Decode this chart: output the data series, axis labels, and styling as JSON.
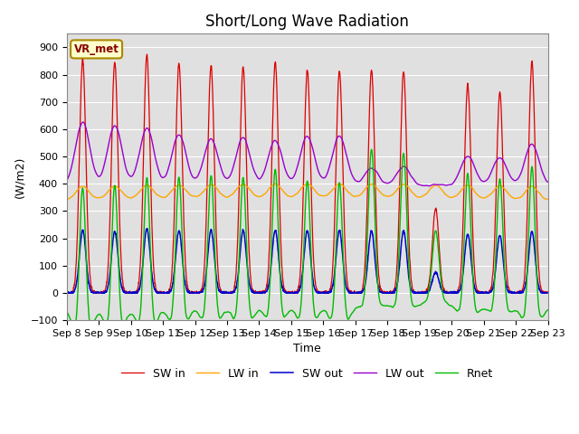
{
  "title": "Short/Long Wave Radiation",
  "xlabel": "Time",
  "ylabel": "(W/m2)",
  "ylim": [
    -100,
    950
  ],
  "label_text": "VR_met",
  "x_tick_labels": [
    "Sep 8",
    "Sep 9",
    "Sep 10",
    "Sep 11",
    "Sep 12",
    "Sep 13",
    "Sep 14",
    "Sep 15",
    "Sep 16",
    "Sep 17",
    "Sep 18",
    "Sep 19",
    "Sep 20",
    "Sep 21",
    "Sep 22",
    "Sep 23"
  ],
  "colors": {
    "SW_in": "#dd0000",
    "LW_in": "#ffa500",
    "SW_out": "#0000cc",
    "LW_out": "#9900cc",
    "Rnet": "#00bb00"
  },
  "legend_labels": [
    "SW in",
    "LW in",
    "SW out",
    "LW out",
    "Rnet"
  ],
  "plot_bg": "#e0e0e0",
  "title_fontsize": 12,
  "axis_fontsize": 9,
  "tick_fontsize": 8
}
